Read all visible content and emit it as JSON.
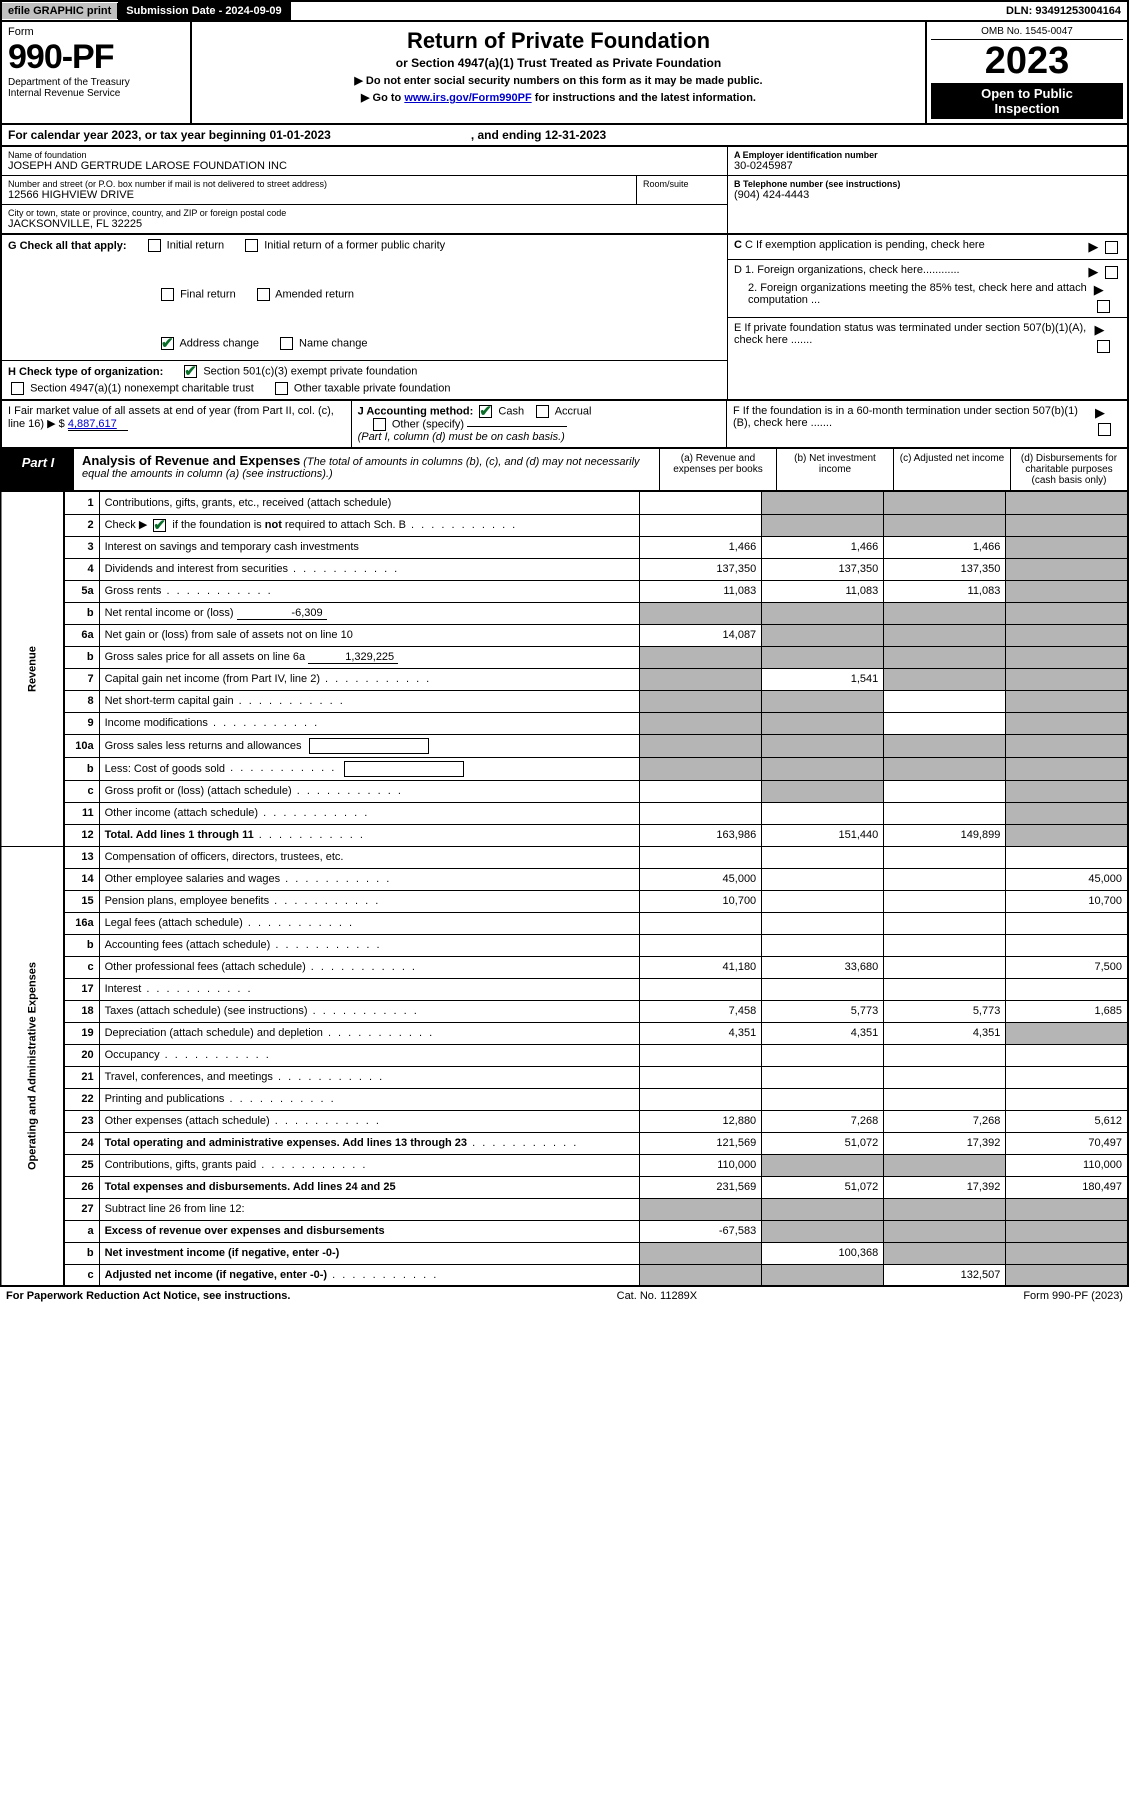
{
  "topBar": {
    "efile": "efile GRAPHIC print",
    "subLabel": "Submission Date - 2024-09-09",
    "dln": "DLN: 93491253004164"
  },
  "header": {
    "formWord": "Form",
    "formNumber": "990-PF",
    "dept1": "Department of the Treasury",
    "dept2": "Internal Revenue Service",
    "title": "Return of Private Foundation",
    "subtitle": "or Section 4947(a)(1) Trust Treated as Private Foundation",
    "arrow1": "▶ Do not enter social security numbers on this form as it may be made public.",
    "arrow2_pre": "▶ Go to ",
    "arrow2_link": "www.irs.gov/Form990PF",
    "arrow2_post": " for instructions and the latest information.",
    "omb": "OMB No. 1545-0047",
    "year": "2023",
    "open1": "Open to Public",
    "open2": "Inspection"
  },
  "calYear": {
    "text1": "For calendar year 2023, or tax year beginning 01-01-2023",
    "text2": ", and ending 12-31-2023"
  },
  "info": {
    "nameLabel": "Name of foundation",
    "name": "JOSEPH AND GERTRUDE LAROSE FOUNDATION INC",
    "addrLabel": "Number and street (or P.O. box number if mail is not delivered to street address)",
    "addr": "12566 HIGHVIEW DRIVE",
    "roomLabel": "Room/suite",
    "cityLabel": "City or town, state or province, country, and ZIP or foreign postal code",
    "city": "JACKSONVILLE, FL  32225",
    "AeinLabel": "A Employer identification number",
    "Aein": "30-0245987",
    "BtelLabel": "B Telephone number (see instructions)",
    "Btel": "(904) 424-4443",
    "Clabel": "C If exemption application is pending, check here",
    "D1": "D 1. Foreign organizations, check here............",
    "D2": "2. Foreign organizations meeting the 85% test, check here and attach computation ...",
    "E": "E  If private foundation status was terminated under section 507(b)(1)(A), check here .......",
    "F": "F  If the foundation is in a 60-month termination under section 507(b)(1)(B), check here .......",
    "G": "G Check all that apply:",
    "G_initial": "Initial return",
    "G_initial_former": "Initial return of a former public charity",
    "G_final": "Final return",
    "G_amended": "Amended return",
    "G_address": "Address change",
    "G_name": "Name change",
    "H": "H Check type of organization:",
    "H_501c3": "Section 501(c)(3) exempt private foundation",
    "H_4947": "Section 4947(a)(1) nonexempt charitable trust",
    "H_other_tax": "Other taxable private foundation",
    "I_label": "I Fair market value of all assets at end of year (from Part II, col. (c), line 16) ▶ $",
    "I_val": "4,887,617",
    "J_label": "J Accounting method:",
    "J_cash": "Cash",
    "J_accrual": "Accrual",
    "J_other": "Other (specify)",
    "J_note": "(Part I, column (d) must be on cash basis.)"
  },
  "part1": {
    "label": "Part I",
    "title": "Analysis of Revenue and Expenses",
    "note": "(The total of amounts in columns (b), (c), and (d) may not necessarily equal the amounts in column (a) (see instructions).)",
    "colA": "(a)   Revenue and expenses per books",
    "colB": "(b)   Net investment income",
    "colC": "(c)   Adjusted net income",
    "colD": "(d)   Disbursements for charitable purposes (cash basis only)"
  },
  "sideLabels": {
    "revenue": "Revenue",
    "expenses": "Operating and Administrative Expenses"
  },
  "rows": [
    {
      "n": "1",
      "d": "Contributions, gifts, grants, etc., received (attach schedule)",
      "a": "",
      "b": "shade",
      "c": "shade",
      "dd": "shade"
    },
    {
      "n": "2",
      "d": "Check ▶ ☑ if the foundation is not required to attach Sch. B",
      "dots": true,
      "a": "",
      "b": "shade",
      "c": "shade",
      "dd": "shade",
      "checked": true
    },
    {
      "n": "3",
      "d": "Interest on savings and temporary cash investments",
      "a": "1,466",
      "b": "1,466",
      "c": "1,466",
      "dd": "shade"
    },
    {
      "n": "4",
      "d": "Dividends and interest from securities",
      "dots": true,
      "a": "137,350",
      "b": "137,350",
      "c": "137,350",
      "dd": "shade"
    },
    {
      "n": "5a",
      "d": "Gross rents",
      "dots": true,
      "a": "11,083",
      "b": "11,083",
      "c": "11,083",
      "dd": "shade"
    },
    {
      "n": "b",
      "d": "Net rental income or (loss)",
      "inline": "-6,309",
      "a": "shade",
      "b": "shade",
      "c": "shade",
      "dd": "shade"
    },
    {
      "n": "6a",
      "d": "Net gain or (loss) from sale of assets not on line 10",
      "a": "14,087",
      "b": "shade",
      "c": "shade",
      "dd": "shade"
    },
    {
      "n": "b",
      "d": "Gross sales price for all assets on line 6a",
      "inline": "1,329,225",
      "a": "shade",
      "b": "shade",
      "c": "shade",
      "dd": "shade"
    },
    {
      "n": "7",
      "d": "Capital gain net income (from Part IV, line 2)",
      "dots": true,
      "a": "shade",
      "b": "1,541",
      "c": "shade",
      "dd": "shade"
    },
    {
      "n": "8",
      "d": "Net short-term capital gain",
      "dots": true,
      "a": "shade",
      "b": "shade",
      "c": "",
      "dd": "shade"
    },
    {
      "n": "9",
      "d": "Income modifications",
      "dots": true,
      "a": "shade",
      "b": "shade",
      "c": "",
      "dd": "shade"
    },
    {
      "n": "10a",
      "d": "Gross sales less returns and allowances",
      "box": true,
      "a": "shade",
      "b": "shade",
      "c": "shade",
      "dd": "shade"
    },
    {
      "n": "b",
      "d": "Less: Cost of goods sold",
      "dots": true,
      "box": true,
      "a": "shade",
      "b": "shade",
      "c": "shade",
      "dd": "shade"
    },
    {
      "n": "c",
      "d": "Gross profit or (loss) (attach schedule)",
      "dots": true,
      "a": "",
      "b": "shade",
      "c": "",
      "dd": "shade"
    },
    {
      "n": "11",
      "d": "Other income (attach schedule)",
      "dots": true,
      "a": "",
      "b": "",
      "c": "",
      "dd": "shade"
    },
    {
      "n": "12",
      "d": "Total. Add lines 1 through 11",
      "dots": true,
      "bold": true,
      "a": "163,986",
      "b": "151,440",
      "c": "149,899",
      "dd": "shade"
    },
    {
      "n": "13",
      "d": "Compensation of officers, directors, trustees, etc.",
      "a": "",
      "b": "",
      "c": "",
      "dd": ""
    },
    {
      "n": "14",
      "d": "Other employee salaries and wages",
      "dots": true,
      "a": "45,000",
      "b": "",
      "c": "",
      "dd": "45,000"
    },
    {
      "n": "15",
      "d": "Pension plans, employee benefits",
      "dots": true,
      "a": "10,700",
      "b": "",
      "c": "",
      "dd": "10,700"
    },
    {
      "n": "16a",
      "d": "Legal fees (attach schedule)",
      "dots": true,
      "a": "",
      "b": "",
      "c": "",
      "dd": ""
    },
    {
      "n": "b",
      "d": "Accounting fees (attach schedule)",
      "dots": true,
      "a": "",
      "b": "",
      "c": "",
      "dd": ""
    },
    {
      "n": "c",
      "d": "Other professional fees (attach schedule)",
      "dots": true,
      "a": "41,180",
      "b": "33,680",
      "c": "",
      "dd": "7,500"
    },
    {
      "n": "17",
      "d": "Interest",
      "dots": true,
      "a": "",
      "b": "",
      "c": "",
      "dd": ""
    },
    {
      "n": "18",
      "d": "Taxes (attach schedule) (see instructions)",
      "dots": true,
      "a": "7,458",
      "b": "5,773",
      "c": "5,773",
      "dd": "1,685"
    },
    {
      "n": "19",
      "d": "Depreciation (attach schedule) and depletion",
      "dots": true,
      "a": "4,351",
      "b": "4,351",
      "c": "4,351",
      "dd": "shade"
    },
    {
      "n": "20",
      "d": "Occupancy",
      "dots": true,
      "a": "",
      "b": "",
      "c": "",
      "dd": ""
    },
    {
      "n": "21",
      "d": "Travel, conferences, and meetings",
      "dots": true,
      "a": "",
      "b": "",
      "c": "",
      "dd": ""
    },
    {
      "n": "22",
      "d": "Printing and publications",
      "dots": true,
      "a": "",
      "b": "",
      "c": "",
      "dd": ""
    },
    {
      "n": "23",
      "d": "Other expenses (attach schedule)",
      "dots": true,
      "a": "12,880",
      "b": "7,268",
      "c": "7,268",
      "dd": "5,612"
    },
    {
      "n": "24",
      "d": "Total operating and administrative expenses. Add lines 13 through 23",
      "dots": true,
      "bold": true,
      "a": "121,569",
      "b": "51,072",
      "c": "17,392",
      "dd": "70,497"
    },
    {
      "n": "25",
      "d": "Contributions, gifts, grants paid",
      "dots": true,
      "a": "110,000",
      "b": "shade",
      "c": "shade",
      "dd": "110,000"
    },
    {
      "n": "26",
      "d": "Total expenses and disbursements. Add lines 24 and 25",
      "bold": true,
      "a": "231,569",
      "b": "51,072",
      "c": "17,392",
      "dd": "180,497"
    },
    {
      "n": "27",
      "d": "Subtract line 26 from line 12:",
      "a": "shade",
      "b": "shade",
      "c": "shade",
      "dd": "shade"
    },
    {
      "n": "a",
      "d": "Excess of revenue over expenses and disbursements",
      "bold": true,
      "a": "-67,583",
      "b": "shade",
      "c": "shade",
      "dd": "shade"
    },
    {
      "n": "b",
      "d": "Net investment income (if negative, enter -0-)",
      "bold": true,
      "a": "shade",
      "b": "100,368",
      "c": "shade",
      "dd": "shade"
    },
    {
      "n": "c",
      "d": "Adjusted net income (if negative, enter -0-)",
      "dots": true,
      "bold": true,
      "a": "shade",
      "b": "shade",
      "c": "132,507",
      "dd": "shade"
    }
  ],
  "footer": {
    "left": "For Paperwork Reduction Act Notice, see instructions.",
    "center": "Cat. No. 11289X",
    "right": "Form 990-PF (2023)"
  },
  "colors": {
    "shaded": "#b5b5b5",
    "link": "#0000cc",
    "check": "#0a6e2a"
  }
}
